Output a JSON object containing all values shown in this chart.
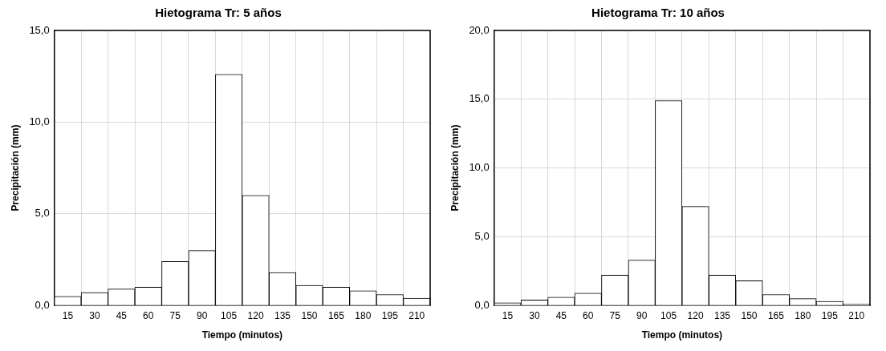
{
  "chart_data": [
    {
      "type": "bar",
      "title": "Hietograma Tr: 5 años",
      "xlabel": "Tiempo (minutos)",
      "ylabel": "Precipitación (mm)",
      "categories": [
        "15",
        "30",
        "45",
        "60",
        "75",
        "90",
        "105",
        "120",
        "135",
        "150",
        "165",
        "180",
        "195",
        "210"
      ],
      "values": [
        0.5,
        0.7,
        0.9,
        1.0,
        2.4,
        3.0,
        12.6,
        6.0,
        1.8,
        1.1,
        1.0,
        0.8,
        0.6,
        0.4
      ],
      "color": "#ffffff",
      "ylim": [
        0,
        15
      ],
      "yticks": [
        {
          "value": 0,
          "label": "0,0"
        },
        {
          "value": 5,
          "label": "5,0"
        },
        {
          "value": 10,
          "label": "10,0"
        },
        {
          "value": 15,
          "label": "15,0"
        }
      ],
      "grid": true
    },
    {
      "type": "bar",
      "title": "Hietograma Tr: 10 años",
      "xlabel": "Tiempo (minutos)",
      "ylabel": "Precipitación (mm)",
      "categories": [
        "15",
        "30",
        "45",
        "60",
        "75",
        "90",
        "105",
        "120",
        "135",
        "150",
        "165",
        "180",
        "195",
        "210"
      ],
      "values": [
        0.2,
        0.4,
        0.6,
        0.9,
        2.2,
        3.3,
        14.9,
        7.2,
        2.2,
        1.8,
        0.8,
        0.5,
        0.3,
        0.1
      ],
      "color": "#ffffff",
      "ylim": [
        0,
        20
      ],
      "yticks": [
        {
          "value": 0,
          "label": "0,0"
        },
        {
          "value": 5,
          "label": "5,0"
        },
        {
          "value": 10,
          "label": "10,0"
        },
        {
          "value": 15,
          "label": "15,0"
        },
        {
          "value": 20,
          "label": "20,0"
        }
      ],
      "grid": true
    }
  ]
}
